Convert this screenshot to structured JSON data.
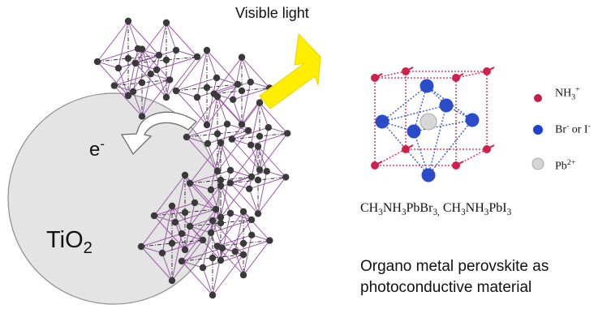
{
  "labels": {
    "light": "Visible light",
    "electron_base": "e",
    "electron_sup": "-",
    "tio2_base": "TiO",
    "tio2_sub": "2"
  },
  "legend": [
    {
      "symbol": "NH",
      "sub": "3",
      "sup": "+",
      "color": "#c21f4a"
    },
    {
      "symbol": "Br",
      "sup": "-",
      "middle": " or I",
      "sup2": "-",
      "color": "#1f3fcf"
    },
    {
      "symbol": "Pb",
      "sup": "2+",
      "color": "#cfcfcf"
    }
  ],
  "formulas": [
    {
      "parts": [
        "CH",
        "3",
        "NH",
        "3",
        "PbBr",
        "3,"
      ]
    },
    {
      "parts": [
        "CH",
        "3",
        "NH",
        "3",
        "PbI",
        "3"
      ]
    }
  ],
  "caption": {
    "line1": "Organo metal perovskite as",
    "line2": "photoconductive material"
  },
  "colors": {
    "arrow": "#ffee00",
    "tio2_fill": "#e4e4e4",
    "octahedron": "#9a5aa6",
    "atom": "#3a3a3a",
    "cell_edge": "#d11f4d",
    "cell_inner": "#2a4cc8"
  }
}
